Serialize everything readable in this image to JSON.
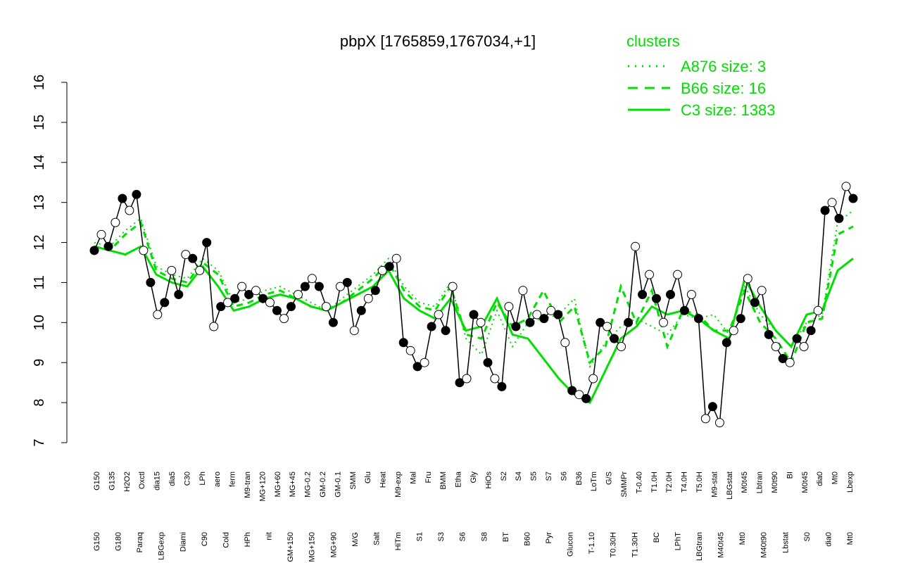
{
  "chart_data": {
    "type": "line",
    "title": "pbpX [1765859,1767034,+1]",
    "ylim": [
      7,
      16
    ],
    "yticks": [
      7,
      8,
      9,
      10,
      11,
      12,
      13,
      14,
      15,
      16
    ],
    "grid": false,
    "legend": {
      "title": "clusters",
      "placement": "top-right",
      "color": "#00e000",
      "entries": [
        {
          "label": "A876 size: 3",
          "style": "dotted"
        },
        {
          "label": "B66 size: 16",
          "style": "dashed"
        },
        {
          "label": "C3 size: 1383",
          "style": "solid"
        }
      ]
    },
    "x_labels_top": [
      "G150",
      "G135",
      "H2O2",
      "Oxctl",
      "dia15",
      "dia5",
      "C30",
      "LPh",
      "aero",
      "ferm",
      "M9-tran",
      "MG+120",
      "MG+60",
      "MG+45",
      "MG-0.2",
      "GM-0.2",
      "GM-0.1",
      "SMM",
      "Glu",
      "Heat",
      "M9-exp",
      "Mal",
      "Fru",
      "BMM",
      "Etha",
      "Gly",
      "HiOs",
      "S2",
      "S4",
      "S5",
      "S7",
      "S6",
      "B36",
      "LoTm",
      "G/S",
      "SMMPr",
      "T-0.40",
      "T1.0H",
      "T2.0H",
      "T4.0H",
      "T5.0H",
      "M9-stat",
      "LBGstat",
      "M0t45",
      "Lbtran",
      "M0t90",
      "BI",
      "M0t45",
      "dia0",
      "Mt0",
      "Lbexp"
    ],
    "x_labels_bottom": [
      "G150",
      "G180",
      "Paraq",
      "LBGexp",
      "Diami",
      "C90",
      "Cold",
      "HPh",
      "nit",
      "GM+150",
      "MG+150",
      "MG+90",
      "M/G",
      "Salt",
      "HiTm",
      "S1",
      "S3",
      "S6",
      "S8",
      "BT",
      "B60",
      "Pyr",
      "Glucon",
      "T-1.10",
      "T0.30H",
      "T1.30H",
      "BC",
      "LPhT",
      "LBGtran",
      "M40t45",
      "Mt0",
      "M40t90",
      "Lbstat",
      "S0",
      "dia0",
      "Mt0"
    ],
    "series": [
      {
        "name": "A876 size: 3",
        "style": "dotted",
        "values": [
          12.0,
          11.9,
          12.3,
          12.6,
          11.4,
          11.2,
          11.1,
          11.6,
          11.3,
          10.5,
          10.6,
          10.8,
          10.9,
          10.7,
          10.5,
          10.3,
          10.6,
          10.9,
          11.2,
          11.6,
          10.9,
          10.5,
          10.4,
          11.0,
          9.6,
          9.2,
          10.3,
          9.4,
          10.0,
          10.1,
          10.2,
          10.6,
          8.9,
          9.5,
          9.9,
          10.1,
          9.9,
          9.7,
          10.2,
          10.1,
          10.2,
          9.7,
          10.9,
          10.2,
          9.8,
          9.4,
          10.0,
          10.2,
          12.5,
          12.8
        ]
      },
      {
        "name": "B66 size: 16",
        "style": "dashed",
        "values": [
          11.9,
          11.8,
          12.2,
          12.5,
          11.3,
          11.1,
          11.0,
          11.5,
          11.2,
          10.4,
          10.5,
          10.7,
          10.8,
          10.6,
          10.4,
          10.3,
          10.5,
          10.8,
          11.1,
          11.5,
          10.8,
          10.4,
          10.3,
          10.9,
          9.7,
          9.6,
          10.5,
          9.9,
          10.1,
          10.8,
          10.0,
          10.4,
          9.0,
          9.4,
          10.9,
          10.0,
          10.8,
          9.4,
          10.3,
          10.2,
          9.8,
          9.8,
          10.8,
          10.0,
          9.6,
          9.0,
          10.0,
          10.1,
          12.2,
          12.4
        ]
      },
      {
        "name": "C3 size: 1383",
        "style": "solid",
        "values": [
          11.9,
          11.8,
          11.7,
          11.9,
          11.2,
          11.0,
          10.9,
          11.4,
          10.9,
          10.3,
          10.4,
          10.6,
          10.7,
          10.6,
          10.4,
          10.3,
          10.5,
          10.7,
          10.9,
          11.3,
          10.6,
          10.3,
          10.1,
          10.6,
          9.8,
          9.9,
          10.6,
          9.7,
          9.6,
          9.1,
          8.6,
          8.2,
          8.0,
          8.8,
          9.6,
          9.9,
          10.4,
          10.2,
          10.3,
          10.1,
          9.8,
          9.6,
          11.1,
          10.4,
          9.8,
          9.4,
          10.2,
          10.3,
          11.3,
          11.6
        ]
      },
      {
        "name": "",
        "style": "points",
        "values": [
          11.8,
          12.2,
          11.9,
          12.5,
          13.1,
          12.8,
          13.2,
          11.8,
          11.0,
          10.2,
          10.5,
          11.3,
          10.7,
          11.7,
          11.6,
          11.3,
          12.0,
          9.9,
          10.4,
          10.5,
          10.6,
          10.9,
          10.7,
          10.8,
          10.6,
          10.5,
          10.3,
          10.1,
          10.4,
          10.7,
          10.9,
          11.1,
          10.9,
          10.4,
          10.0,
          10.9,
          11.0,
          9.8,
          10.3,
          10.6,
          10.8,
          11.3,
          11.4,
          11.6,
          9.5,
          9.3,
          8.9,
          9.0,
          9.9,
          10.2,
          9.8,
          10.9,
          8.5,
          8.6,
          10.2,
          10.0,
          9.0,
          8.6,
          8.4,
          10.4,
          9.9,
          10.8,
          10.0,
          10.2,
          10.1,
          10.3,
          10.2,
          9.5,
          8.3,
          8.2,
          8.1,
          8.6,
          10.0,
          9.9,
          9.6,
          9.4,
          10.0,
          11.9,
          10.7,
          11.2,
          10.6,
          10.0,
          10.7,
          11.2,
          10.3,
          10.7,
          10.1,
          7.6,
          7.9,
          7.5,
          9.5,
          9.8,
          10.1,
          11.1,
          10.5,
          10.8,
          9.7,
          9.4,
          9.1,
          9.0,
          9.6,
          9.4,
          9.8,
          10.3,
          12.8,
          13.0,
          12.6,
          13.4,
          13.1
        ]
      }
    ]
  }
}
